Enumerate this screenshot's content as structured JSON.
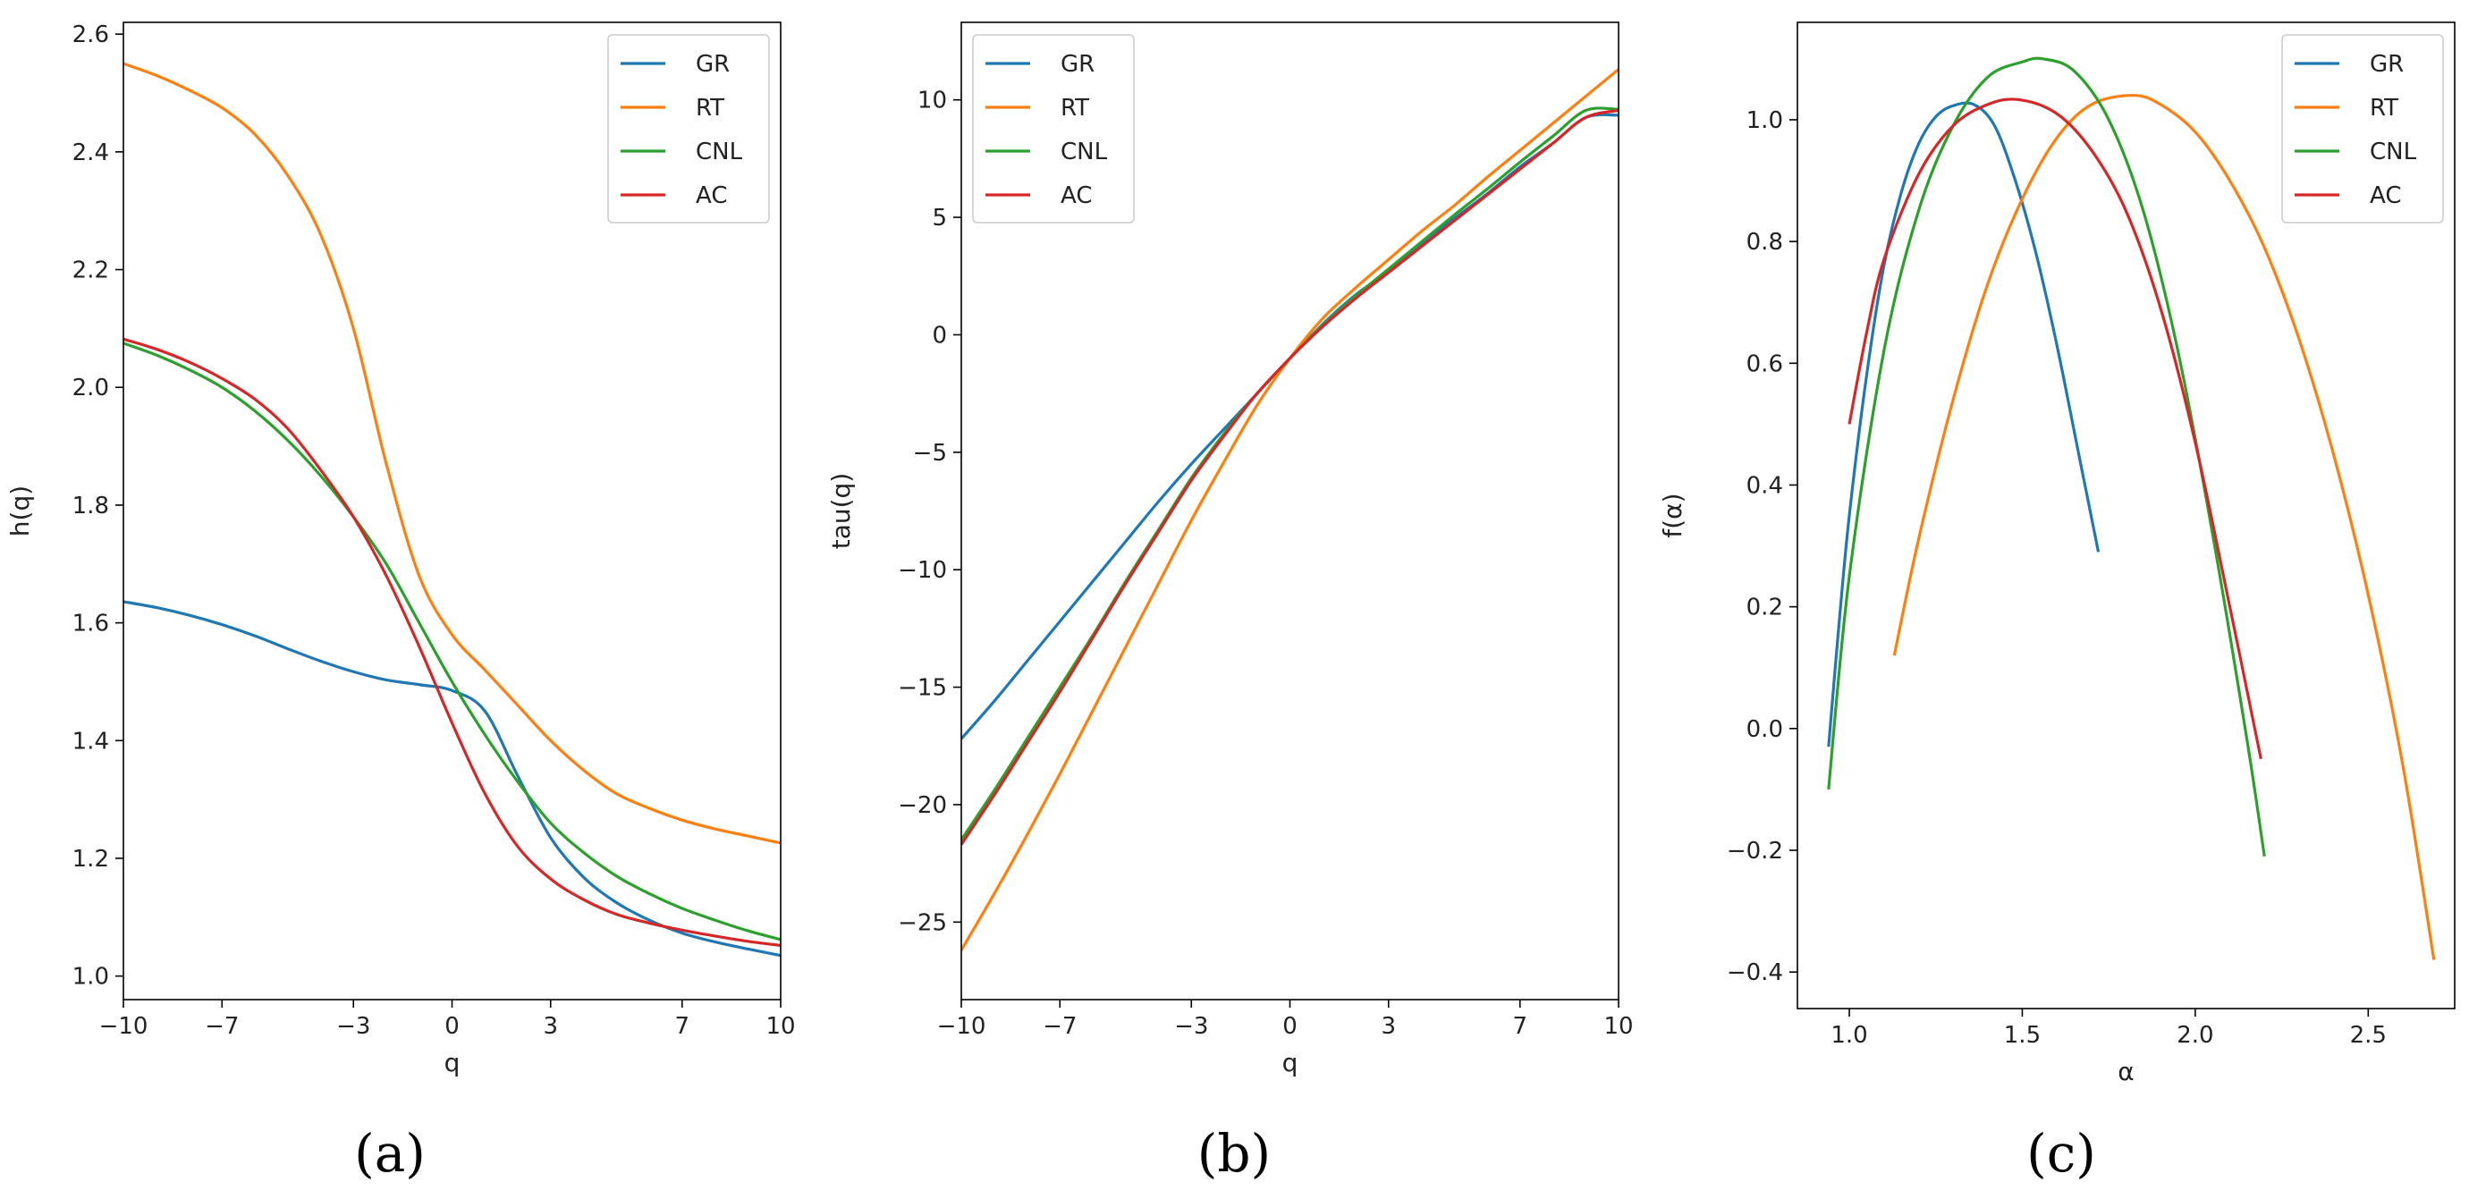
{
  "chart_data": [
    {
      "type": "line",
      "panel_label": "(a)",
      "xlabel": "q",
      "ylabel": "h(q)",
      "xlim": [
        -10,
        10
      ],
      "ylim": [
        0.96,
        2.62
      ],
      "xticks": [
        -10,
        -7,
        -3,
        0,
        3,
        7,
        10
      ],
      "xtick_labels": [
        "−10",
        "−7",
        "−3",
        "0",
        "3",
        "7",
        "10"
      ],
      "yticks": [
        1.0,
        1.2,
        1.4,
        1.6,
        1.8,
        2.0,
        2.2,
        2.4,
        2.6
      ],
      "ytick_labels": [
        "1.0",
        "1.2",
        "1.4",
        "1.6",
        "1.8",
        "2.0",
        "2.2",
        "2.4",
        "2.6"
      ],
      "legend": "top-right",
      "series": [
        {
          "name": "GR",
          "color": "#1f77b4",
          "x": [
            -10,
            -9,
            -8,
            -7,
            -6,
            -5,
            -4,
            -3,
            -2,
            -1,
            0,
            1,
            2,
            3,
            4,
            5,
            6,
            7,
            8,
            9,
            10
          ],
          "y": [
            1.636,
            1.626,
            1.613,
            1.597,
            1.578,
            1.556,
            1.535,
            1.517,
            1.503,
            1.495,
            1.485,
            1.45,
            1.34,
            1.235,
            1.168,
            1.125,
            1.095,
            1.073,
            1.058,
            1.046,
            1.035
          ]
        },
        {
          "name": "RT",
          "color": "#ff7f0e",
          "x": [
            -10,
            -9,
            -8,
            -7,
            -6,
            -5,
            -4,
            -3,
            -2,
            -1,
            0,
            1,
            2,
            3,
            4,
            5,
            6,
            7,
            8,
            9,
            10
          ],
          "y": [
            2.55,
            2.53,
            2.505,
            2.475,
            2.43,
            2.36,
            2.26,
            2.1,
            1.87,
            1.68,
            1.58,
            1.52,
            1.46,
            1.4,
            1.35,
            1.31,
            1.285,
            1.265,
            1.25,
            1.238,
            1.226
          ]
        },
        {
          "name": "CNL",
          "color": "#2ca02c",
          "x": [
            -10,
            -9,
            -8,
            -7,
            -6,
            -5,
            -4,
            -3,
            -2,
            -1,
            0,
            1,
            2,
            3,
            4,
            5,
            6,
            7,
            8,
            9,
            10
          ],
          "y": [
            2.075,
            2.055,
            2.03,
            2.0,
            1.96,
            1.91,
            1.85,
            1.78,
            1.7,
            1.6,
            1.5,
            1.41,
            1.33,
            1.26,
            1.21,
            1.17,
            1.14,
            1.115,
            1.095,
            1.077,
            1.062
          ]
        },
        {
          "name": "AC",
          "color": "#d62728",
          "x": [
            -10,
            -9,
            -8,
            -7,
            -6,
            -5,
            -4,
            -3,
            -2,
            -1,
            0,
            1,
            2,
            3,
            4,
            5,
            6,
            7,
            8,
            9,
            10
          ],
          "y": [
            2.082,
            2.065,
            2.043,
            2.015,
            1.98,
            1.93,
            1.86,
            1.78,
            1.68,
            1.56,
            1.43,
            1.31,
            1.22,
            1.165,
            1.13,
            1.105,
            1.09,
            1.078,
            1.068,
            1.059,
            1.052
          ]
        }
      ]
    },
    {
      "type": "line",
      "panel_label": "(b)",
      "xlabel": "q",
      "ylabel": "tau(q)",
      "xlim": [
        -10,
        10
      ],
      "ylim": [
        -28.3,
        13.3
      ],
      "xticks": [
        -10,
        -7,
        -3,
        0,
        3,
        7,
        10
      ],
      "xtick_labels": [
        "−10",
        "−7",
        "−3",
        "0",
        "3",
        "7",
        "10"
      ],
      "yticks": [
        -25,
        -20,
        -15,
        -10,
        -5,
        0,
        5,
        10
      ],
      "ytick_labels": [
        "−25",
        "−20",
        "−15",
        "−10",
        "−5",
        "0",
        "5",
        "10"
      ],
      "legend": "top-left",
      "series": [
        {
          "name": "GR",
          "color": "#1f77b4",
          "x": [
            -10,
            -9,
            -8,
            -7,
            -6,
            -5,
            -4,
            -3,
            -2,
            -1,
            0,
            1,
            2,
            3,
            4,
            5,
            6,
            7,
            8,
            9,
            10
          ],
          "y": [
            -17.2,
            -15.6,
            -13.9,
            -12.2,
            -10.5,
            -8.8,
            -7.1,
            -5.5,
            -4.0,
            -2.5,
            -1.0,
            0.45,
            1.7,
            2.7,
            3.85,
            4.95,
            6.0,
            7.15,
            8.15,
            9.25,
            9.35
          ]
        },
        {
          "name": "RT",
          "color": "#ff7f0e",
          "x": [
            -10,
            -9,
            -8,
            -7,
            -6,
            -5,
            -4,
            -3,
            -2,
            -1,
            0,
            1,
            2,
            3,
            4,
            5,
            6,
            7,
            8,
            9,
            10
          ],
          "y": [
            -26.2,
            -23.8,
            -21.3,
            -18.7,
            -16.0,
            -13.3,
            -10.6,
            -7.9,
            -5.4,
            -3.0,
            -1.0,
            0.7,
            2.0,
            3.2,
            4.4,
            5.5,
            6.7,
            7.85,
            9.0,
            10.15,
            11.3
          ]
        },
        {
          "name": "CNL",
          "color": "#2ca02c",
          "x": [
            -10,
            -9,
            -8,
            -7,
            -6,
            -5,
            -4,
            -3,
            -2,
            -1,
            0,
            1,
            2,
            3,
            4,
            5,
            6,
            7,
            8,
            9,
            10
          ],
          "y": [
            -21.5,
            -19.4,
            -17.2,
            -15.0,
            -12.8,
            -10.5,
            -8.3,
            -6.1,
            -4.2,
            -2.5,
            -1.0,
            0.4,
            1.65,
            2.8,
            3.95,
            5.1,
            6.2,
            7.35,
            8.45,
            9.55,
            9.6
          ]
        },
        {
          "name": "AC",
          "color": "#d62728",
          "x": [
            -10,
            -9,
            -8,
            -7,
            -6,
            -5,
            -4,
            -3,
            -2,
            -1,
            0,
            1,
            2,
            3,
            4,
            5,
            6,
            7,
            8,
            9,
            10
          ],
          "y": [
            -21.7,
            -19.6,
            -17.4,
            -15.2,
            -12.9,
            -10.6,
            -8.4,
            -6.2,
            -4.3,
            -2.5,
            -1.0,
            0.35,
            1.55,
            2.65,
            3.75,
            4.85,
            5.95,
            7.05,
            8.15,
            9.25,
            9.55
          ]
        }
      ]
    },
    {
      "type": "line",
      "panel_label": "(c)",
      "xlabel": "α",
      "ylabel": "f(α)",
      "xlim": [
        0.85,
        2.75
      ],
      "ylim": [
        -0.46,
        1.16
      ],
      "xticks": [
        1.0,
        1.5,
        2.0,
        2.5
      ],
      "xtick_labels": [
        "1.0",
        "1.5",
        "2.0",
        "2.5"
      ],
      "yticks": [
        -0.4,
        -0.2,
        0.0,
        0.2,
        0.4,
        0.6,
        0.8,
        1.0
      ],
      "ytick_labels": [
        "−0.4",
        "−0.2",
        "0.0",
        "0.2",
        "0.4",
        "0.6",
        "0.8",
        "1.0"
      ],
      "legend": "top-right",
      "series": [
        {
          "name": "GR",
          "color": "#1f77b4",
          "x": [
            0.94,
            0.97,
            1.0,
            1.05,
            1.1,
            1.15,
            1.2,
            1.25,
            1.3,
            1.36,
            1.42,
            1.48,
            1.54,
            1.6,
            1.66,
            1.72
          ],
          "y": [
            -0.03,
            0.17,
            0.35,
            0.58,
            0.76,
            0.88,
            0.96,
            1.005,
            1.023,
            1.025,
            0.99,
            0.9,
            0.78,
            0.63,
            0.46,
            0.29
          ]
        },
        {
          "name": "RT",
          "color": "#ff7f0e",
          "x": [
            1.13,
            1.2,
            1.3,
            1.4,
            1.5,
            1.6,
            1.7,
            1.82,
            1.9,
            2.0,
            2.1,
            2.2,
            2.3,
            2.4,
            2.5,
            2.6,
            2.69
          ],
          "y": [
            0.12,
            0.31,
            0.54,
            0.73,
            0.87,
            0.97,
            1.025,
            1.04,
            1.025,
            0.98,
            0.9,
            0.79,
            0.64,
            0.45,
            0.22,
            -0.06,
            -0.38
          ]
        },
        {
          "name": "CNL",
          "color": "#2ca02c",
          "x": [
            0.94,
            1.0,
            1.1,
            1.2,
            1.3,
            1.4,
            1.5,
            1.56,
            1.65,
            1.75,
            1.85,
            1.95,
            2.05,
            2.15,
            2.2
          ],
          "y": [
            -0.1,
            0.25,
            0.62,
            0.85,
            0.99,
            1.07,
            1.095,
            1.1,
            1.08,
            1.0,
            0.85,
            0.62,
            0.32,
            -0.02,
            -0.21
          ]
        },
        {
          "name": "AC",
          "color": "#d62728",
          "x": [
            1.0,
            1.05,
            1.1,
            1.2,
            1.3,
            1.4,
            1.49,
            1.6,
            1.7,
            1.8,
            1.9,
            2.0,
            2.1,
            2.19
          ],
          "y": [
            0.5,
            0.65,
            0.77,
            0.91,
            0.99,
            1.025,
            1.033,
            1.01,
            0.95,
            0.85,
            0.69,
            0.47,
            0.2,
            -0.05
          ]
        }
      ]
    }
  ]
}
